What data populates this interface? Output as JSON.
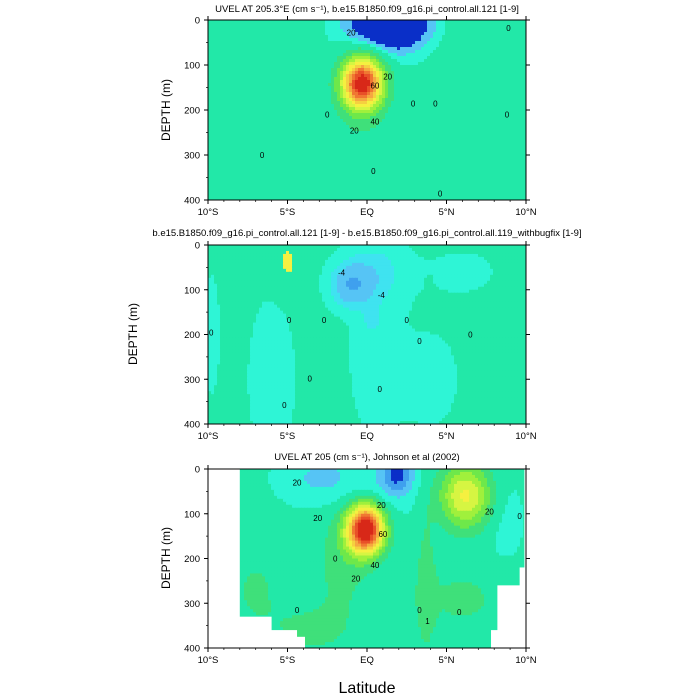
{
  "figure": {
    "xlabel": "Latitude",
    "xtick_labels": [
      "10°S",
      "5°S",
      "EQ",
      "5°N",
      "10°N"
    ]
  },
  "colors": [
    "#0a2fc8",
    "#1f6ee8",
    "#3fa0ee",
    "#56c4f5",
    "#3fe3f0",
    "#2ef5d6",
    "#22e8a8",
    "#3fe07a",
    "#6ee84a",
    "#a0f03c",
    "#d6f542",
    "#f5f040",
    "#f5d040",
    "#f5a840",
    "#f07832",
    "#e85028",
    "#d82818"
  ],
  "chart_data": [
    {
      "type": "contour",
      "name": "model",
      "title": "UVEL AT 205.3°E (cm s⁻¹), b.e15.B1850.f09_g16.pi_control.all.121 [1-9]",
      "ylabel": "DEPTH (m)",
      "xlim": [
        -10,
        10
      ],
      "ylim": [
        0,
        400
      ],
      "yticks": [
        0,
        100,
        200,
        300,
        400
      ],
      "levels": [
        -10,
        -5,
        0,
        10,
        20,
        30,
        40,
        50,
        60,
        70,
        80,
        90,
        100
      ],
      "field": {
        "background": [
          {
            "x": 0,
            "y": 0,
            "v": 1
          }
        ],
        "blobs": [
          {
            "x": -4.9,
            "y": 20,
            "sx": 3.2,
            "sy": 50,
            "a": 2,
            "rot": 0
          },
          {
            "x": 7.0,
            "y": 130,
            "sx": 2.6,
            "sy": 210,
            "a": 8,
            "rot": 0
          },
          {
            "x": 1.4,
            "y": 10,
            "sx": 2.6,
            "sy": 60,
            "a": -28,
            "rot": 0
          },
          {
            "x": -9.6,
            "y": 390,
            "sx": 2.8,
            "sy": 90,
            "a": 9,
            "rot": 0
          },
          {
            "x": -0.3,
            "y": 140,
            "sx": 1.25,
            "sy": 55,
            "a": 105,
            "rot": 0
          },
          {
            "x": -0.4,
            "y": 200,
            "sx": 1.9,
            "sy": 110,
            "a": 8,
            "rot": 0
          }
        ]
      },
      "contour_labels": [
        {
          "text": "20",
          "x": -1.0,
          "y": 28
        },
        {
          "text": "20",
          "x": 1.3,
          "y": 125
        },
        {
          "text": "60",
          "x": 0.5,
          "y": 145
        },
        {
          "text": "40",
          "x": 0.5,
          "y": 225
        },
        {
          "text": "20",
          "x": -0.8,
          "y": 245
        },
        {
          "text": "0",
          "x": -6.6,
          "y": 300
        },
        {
          "text": "0",
          "x": 2.9,
          "y": 185
        },
        {
          "text": "0",
          "x": 4.3,
          "y": 185
        },
        {
          "text": "0",
          "x": 0.4,
          "y": 335
        },
        {
          "text": "0",
          "x": 4.6,
          "y": 385
        },
        {
          "text": "0",
          "x": 8.9,
          "y": 18
        },
        {
          "text": "0",
          "x": 8.8,
          "y": 210
        },
        {
          "text": "0",
          "x": -2.5,
          "y": 210
        }
      ]
    },
    {
      "type": "contour",
      "name": "difference",
      "title": "b.e15.B1850.f09_g16.pi_control.all.121 [1-9] - b.e15.B1850.f09_g16.pi_control.all.119_withbugfix [1-9]",
      "ylabel": "DEPTH (m)",
      "xlim": [
        -10,
        10
      ],
      "ylim": [
        0,
        400
      ],
      "yticks": [
        0,
        100,
        200,
        300,
        400
      ],
      "levels": [
        -12,
        -10,
        -8,
        -6,
        -4,
        -2,
        0,
        2,
        4
      ],
      "field": {
        "background": [
          {
            "x": 0,
            "y": 0,
            "v": 0.6
          }
        ],
        "blobs": [
          {
            "x": -5.0,
            "y": 40,
            "sx": 0.9,
            "sy": 60,
            "a": 1.8,
            "rot": 0
          },
          {
            "x": -6.0,
            "y": 300,
            "sx": 1.6,
            "sy": 200,
            "a": -1.4,
            "rot": 0
          },
          {
            "x": 0.6,
            "y": 250,
            "sx": 1.6,
            "sy": 170,
            "a": -1.8,
            "rot": 0
          },
          {
            "x": -1.0,
            "y": 90,
            "sx": 1.2,
            "sy": 45,
            "a": -7.5,
            "rot": 0
          },
          {
            "x": 0.5,
            "y": 60,
            "sx": 2.0,
            "sy": 70,
            "a": -3.2,
            "rot": 0
          },
          {
            "x": 0.3,
            "y": 165,
            "sx": 0.5,
            "sy": 25,
            "a": -2.4,
            "rot": 0
          },
          {
            "x": 4.0,
            "y": 300,
            "sx": 2.0,
            "sy": 120,
            "a": -1.2,
            "rot": 0
          },
          {
            "x": 6.0,
            "y": 60,
            "sx": 2.6,
            "sy": 60,
            "a": -1.0,
            "rot": 0
          },
          {
            "x": -9.8,
            "y": 200,
            "sx": 0.6,
            "sy": 150,
            "a": -1.3,
            "rot": 0
          },
          {
            "x": 3.9,
            "y": 85,
            "sx": 0.2,
            "sy": 12,
            "a": 1.4,
            "rot": 0
          }
        ]
      },
      "contour_labels": [
        {
          "text": "-4",
          "x": -1.6,
          "y": 62
        },
        {
          "text": "-4",
          "x": 0.9,
          "y": 112
        },
        {
          "text": "0",
          "x": -4.9,
          "y": 168
        },
        {
          "text": "0",
          "x": -2.7,
          "y": 168
        },
        {
          "text": "0",
          "x": 2.5,
          "y": 168
        },
        {
          "text": "0",
          "x": 3.3,
          "y": 214
        },
        {
          "text": "0",
          "x": -9.8,
          "y": 196
        },
        {
          "text": "0",
          "x": -3.6,
          "y": 298
        },
        {
          "text": "0",
          "x": -5.2,
          "y": 358
        },
        {
          "text": "0",
          "x": 0.8,
          "y": 322
        },
        {
          "text": "0",
          "x": 6.5,
          "y": 200
        }
      ]
    },
    {
      "type": "contour",
      "name": "observations",
      "title": "UVEL AT 205 (cm s⁻¹), Johnson et al (2002)",
      "ylabel": "DEPTH (m)",
      "xlim": [
        -10,
        10
      ],
      "ylim": [
        0,
        400
      ],
      "yticks": [
        0,
        100,
        200,
        300,
        400
      ],
      "levels": [
        -30,
        -20,
        -10,
        0,
        10,
        20,
        30,
        40,
        50,
        60,
        70,
        80,
        90,
        100
      ],
      "field": {
        "background": [
          {
            "x": 0,
            "y": 0,
            "v": 2
          }
        ],
        "blobs": [
          {
            "x": -3.0,
            "y": 20,
            "sx": 2.3,
            "sy": 55,
            "a": -14,
            "rot": 0
          },
          {
            "x": 1.9,
            "y": 10,
            "sx": 1.0,
            "sy": 45,
            "a": -32,
            "rot": 0
          },
          {
            "x": 0.5,
            "y": 40,
            "sx": 2.6,
            "sy": 70,
            "a": -8,
            "rot": 0
          },
          {
            "x": 6.2,
            "y": 60,
            "sx": 1.6,
            "sy": 70,
            "a": 50,
            "rot": 0
          },
          {
            "x": 8.6,
            "y": 110,
            "sx": 1.2,
            "sy": 110,
            "a": -6,
            "rot": 0
          },
          {
            "x": -0.1,
            "y": 135,
            "sx": 1.15,
            "sy": 55,
            "a": 115,
            "rot": 0
          },
          {
            "x": -1.6,
            "y": 210,
            "sx": 1.6,
            "sy": 130,
            "a": 12,
            "rot": 0
          },
          {
            "x": 3.7,
            "y": 260,
            "sx": 0.6,
            "sy": 170,
            "a": 12,
            "rot": 0
          },
          {
            "x": -7.0,
            "y": 270,
            "sx": 2.0,
            "sy": 110,
            "a": 9,
            "rot": 0
          },
          {
            "x": -3.5,
            "y": 360,
            "sx": 2.4,
            "sy": 60,
            "a": 10,
            "rot": 0
          },
          {
            "x": 6.0,
            "y": 290,
            "sx": 3.0,
            "sy": 80,
            "a": 10,
            "rot": 0
          },
          {
            "x": -9.4,
            "y": 80,
            "sx": 1.3,
            "sy": 120,
            "a": 4,
            "rot": 0
          }
        ]
      },
      "mask": [
        {
          "x0": -10.2,
          "x1": -8.0,
          "y0": -5,
          "y1": 405
        },
        {
          "x0": -8.1,
          "x1": -6.0,
          "y0": 330,
          "y1": 405
        },
        {
          "x0": -6.1,
          "x1": -4.4,
          "y0": 360,
          "y1": 405
        },
        {
          "x0": -4.5,
          "x1": -3.9,
          "y0": 375,
          "y1": 405
        },
        {
          "x0": 8.2,
          "x1": 10.2,
          "y0": 260,
          "y1": 405
        },
        {
          "x0": 9.6,
          "x1": 10.2,
          "y0": 220,
          "y1": 405
        },
        {
          "x0": 7.8,
          "x1": 8.3,
          "y0": 360,
          "y1": 405
        },
        {
          "x0": 9.9,
          "x1": 10.2,
          "y0": -5,
          "y1": 405
        }
      ],
      "contour_labels": [
        {
          "text": "20",
          "x": -4.4,
          "y": 30
        },
        {
          "text": "20",
          "x": -3.1,
          "y": 110
        },
        {
          "text": "20",
          "x": 0.9,
          "y": 80
        },
        {
          "text": "60",
          "x": 1.0,
          "y": 145
        },
        {
          "text": "40",
          "x": 0.5,
          "y": 215
        },
        {
          "text": "20",
          "x": -0.7,
          "y": 245
        },
        {
          "text": "20",
          "x": 7.7,
          "y": 95
        },
        {
          "text": "0",
          "x": -2.0,
          "y": 200
        },
        {
          "text": "0",
          "x": -4.4,
          "y": 315
        },
        {
          "text": "0",
          "x": 3.3,
          "y": 315
        },
        {
          "text": "1",
          "x": 3.8,
          "y": 340
        },
        {
          "text": "0",
          "x": 5.8,
          "y": 320
        },
        {
          "text": "0",
          "x": 9.6,
          "y": 105
        }
      ]
    }
  ]
}
